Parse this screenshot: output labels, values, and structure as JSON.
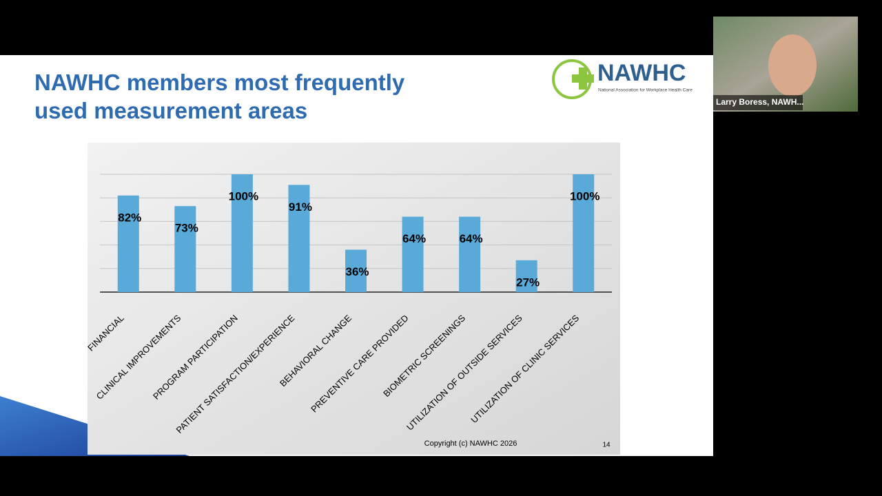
{
  "slide": {
    "title_lines": [
      "NAWHC members most frequently",
      "used measurement areas"
    ],
    "logo_text": "NAWHC",
    "logo_subtitle": "National Association for Workplace Health Care",
    "footer": "Copyright (c) NAWHC 2026",
    "page_number": "14"
  },
  "chart_data": {
    "type": "bar",
    "categories": [
      "FINANCIAL",
      "CLINICAL IMPROVEMENTS",
      "PROGRAM PARTICIPATION",
      "PATIENT SATISFACTION/EXPERIENCE",
      "BEHAVIORAL CHANGE",
      "PREVENTIVE CARE PROVIDED",
      "BIOMETRIC SCREENINGS",
      "UTILIZATION OF OUTSIDE SERVICES",
      "UTILIZATION OF CLINIC SERVICES"
    ],
    "values": [
      82,
      73,
      100,
      91,
      36,
      64,
      64,
      27,
      100
    ],
    "value_labels": [
      "82%",
      "73%",
      "100%",
      "91%",
      "36%",
      "64%",
      "64%",
      "27%",
      "100%"
    ],
    "color": "#5aaad9",
    "ylim": [
      0,
      100
    ],
    "yticks": [
      0,
      20,
      40,
      60,
      80,
      100
    ],
    "grid": true
  },
  "participant": {
    "name": "Larry Boress, NAWH..."
  }
}
